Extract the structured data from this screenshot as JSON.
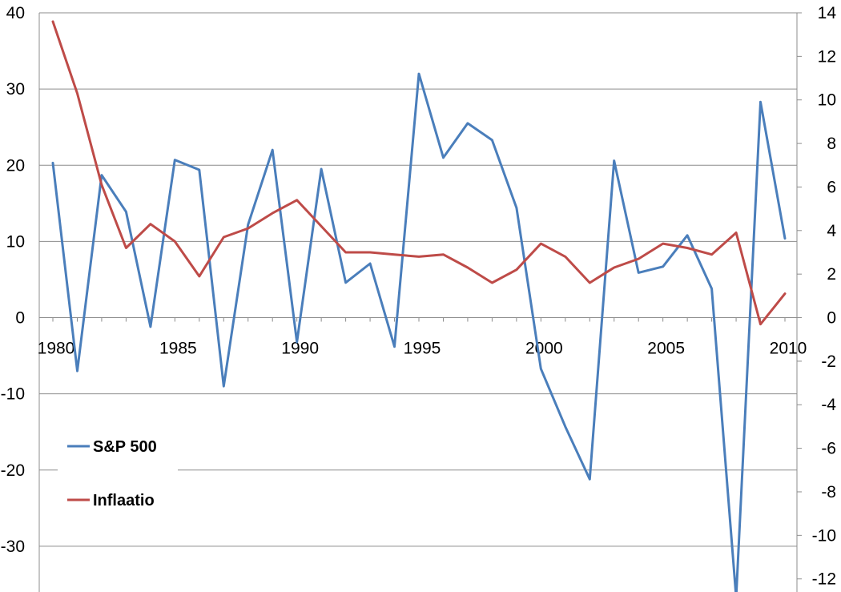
{
  "chart_data": {
    "type": "line",
    "title": "",
    "xlabel": "",
    "ylabel": "",
    "x": [
      1980,
      1981,
      1982,
      1983,
      1984,
      1985,
      1986,
      1987,
      1988,
      1989,
      1990,
      1991,
      1992,
      1993,
      1994,
      1995,
      1996,
      1997,
      1998,
      1999,
      2000,
      2001,
      2002,
      2003,
      2004,
      2005,
      2006,
      2007,
      2008,
      2009,
      2010
    ],
    "x_tick_labels": [
      "1980",
      "1985",
      "1990",
      "1995",
      "2000",
      "2005",
      "2010"
    ],
    "y_left_tick_labels": [
      "40",
      "30",
      "20",
      "10",
      "0",
      "-10",
      "-20",
      "-30"
    ],
    "y_right_tick_labels": [
      "14",
      "12",
      "10",
      "8",
      "6",
      "4",
      "2",
      "0",
      "-2",
      "-4",
      "-6",
      "-8",
      "-10",
      "-12"
    ],
    "y_left_lim": [
      -36,
      40
    ],
    "y_right_lim": [
      -12.6,
      14
    ],
    "grid": true,
    "legend_position": "left",
    "series": [
      {
        "name": "S&P 500",
        "axis": "left",
        "color": "#4a7ebb",
        "values": [
          20.3,
          -7.0,
          18.7,
          13.9,
          -1.2,
          20.7,
          19.4,
          -9.0,
          12.2,
          22.0,
          -3.2,
          19.5,
          4.6,
          7.1,
          -3.8,
          32.0,
          21.0,
          25.5,
          23.3,
          14.4,
          -6.7,
          -14.3,
          -21.2,
          20.6,
          5.9,
          6.7,
          10.8,
          3.8,
          -36.7,
          28.3,
          10.4
        ]
      },
      {
        "name": "Inflaatio",
        "axis": "right",
        "color": "#be4b48",
        "values": [
          13.6,
          10.3,
          6.1,
          3.2,
          4.3,
          3.5,
          1.9,
          3.7,
          4.1,
          4.8,
          5.4,
          4.2,
          3.0,
          3.0,
          2.9,
          2.8,
          2.9,
          2.3,
          1.6,
          2.2,
          3.4,
          2.8,
          1.6,
          2.3,
          2.7,
          3.4,
          3.2,
          2.9,
          3.9,
          -0.3,
          1.1
        ]
      }
    ]
  }
}
